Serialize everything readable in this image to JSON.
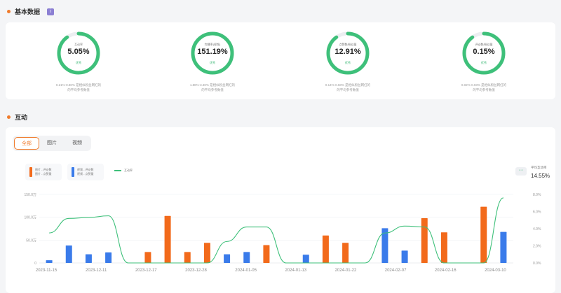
{
  "basic": {
    "title": "基本数据",
    "info_icon": "info-icon",
    "metrics": [
      {
        "label": "互动率",
        "value": "5.05%",
        "status": "优秀",
        "desc1": "0.21%-0.80% 是相似粉丝网红的",
        "desc2": "的平均参考数值",
        "fraction": 0.9
      },
      {
        "label": "完播率(视频)",
        "value": "151.19%",
        "status": "优秀",
        "desc1": "1.88%-3.30% 是相似粉丝网红的",
        "desc2": "的平均参考数值",
        "fraction": 1.0
      },
      {
        "label": "点赞数/粉丝量",
        "value": "12.91%",
        "status": "优秀",
        "desc1": "0.14%-0.68% 是相似粉丝网红的",
        "desc2": "的平均参考数值",
        "fraction": 0.9
      },
      {
        "label": "评论数/粉丝量",
        "value": "0.15%",
        "status": "优秀",
        "desc1": "0.02%-0.03% 是相似粉丝网红的",
        "desc2": "的平均参考数值",
        "fraction": 0.9
      }
    ]
  },
  "interaction": {
    "title": "互动",
    "tabs": [
      "全部",
      "图片",
      "视频"
    ],
    "active_tab": 0,
    "legend": {
      "image_line1": "图片 - 评论数",
      "image_line2": "图片 - 点赞量",
      "video_line1": "视频 - 评论数",
      "video_line2": "视频 - 点赞量",
      "rate": "互动率"
    },
    "more_label": "···",
    "avg_label": "平均互动率",
    "avg_value": "14.55%"
  },
  "colors": {
    "accent": "#f07b2c",
    "green": "#3ec07a",
    "blue": "#3a7bea",
    "orange": "#f26a1b"
  },
  "chart_data": {
    "type": "bar",
    "x": [
      "2023-11-15",
      "2023-12-11",
      "2023-12-17",
      "2023-12-28",
      "2024-01-05",
      "2024-01-13",
      "2024-01-22",
      "2024-02-07",
      "2024-02-16",
      "2024-03-10"
    ],
    "y_left_ticks": [
      "150.0万",
      "100.0万",
      "50.0万",
      "0"
    ],
    "y_right_ticks": [
      "8.0%",
      "6.0%",
      "4.0%",
      "2.0%",
      "0.0%"
    ],
    "ylim_left": [
      0,
      1500000
    ],
    "ylim_right": [
      0,
      8
    ],
    "series": [
      {
        "name": "视频",
        "color": "#3a7bea",
        "points": [
          [
            0,
            60000
          ],
          [
            1,
            380000
          ],
          [
            2,
            190000
          ],
          [
            3,
            230000
          ],
          [
            9,
            190000
          ],
          [
            10,
            240000
          ],
          [
            13,
            180000
          ],
          [
            17,
            760000
          ],
          [
            18,
            270000
          ],
          [
            23,
            680000
          ]
        ]
      },
      {
        "name": "图片",
        "color": "#f26a1b",
        "points": [
          [
            5,
            240000
          ],
          [
            6,
            1030000
          ],
          [
            7,
            240000
          ],
          [
            8,
            440000
          ],
          [
            11,
            390000
          ],
          [
            14,
            600000
          ],
          [
            15,
            440000
          ],
          [
            19,
            980000
          ],
          [
            20,
            670000
          ],
          [
            22,
            1230000
          ]
        ]
      },
      {
        "name": "互动率",
        "type": "line",
        "color": "#3ec07a",
        "points": [
          [
            0,
            3.5
          ],
          [
            1,
            5.2
          ],
          [
            2,
            5.3
          ],
          [
            3,
            5.5
          ],
          [
            4,
            0
          ],
          [
            5,
            0
          ],
          [
            6,
            0
          ],
          [
            7,
            0
          ],
          [
            8,
            0
          ],
          [
            9,
            2.5
          ],
          [
            10,
            4.2
          ],
          [
            11,
            4.2
          ],
          [
            12,
            0
          ],
          [
            13,
            0
          ],
          [
            14,
            0
          ],
          [
            15,
            0
          ],
          [
            16,
            0
          ],
          [
            17,
            3.5
          ],
          [
            18,
            4.3
          ],
          [
            19,
            4.2
          ],
          [
            20,
            0
          ],
          [
            21,
            0
          ],
          [
            22,
            0
          ],
          [
            23,
            7.6
          ]
        ]
      }
    ],
    "slots": 24,
    "grid": true
  }
}
